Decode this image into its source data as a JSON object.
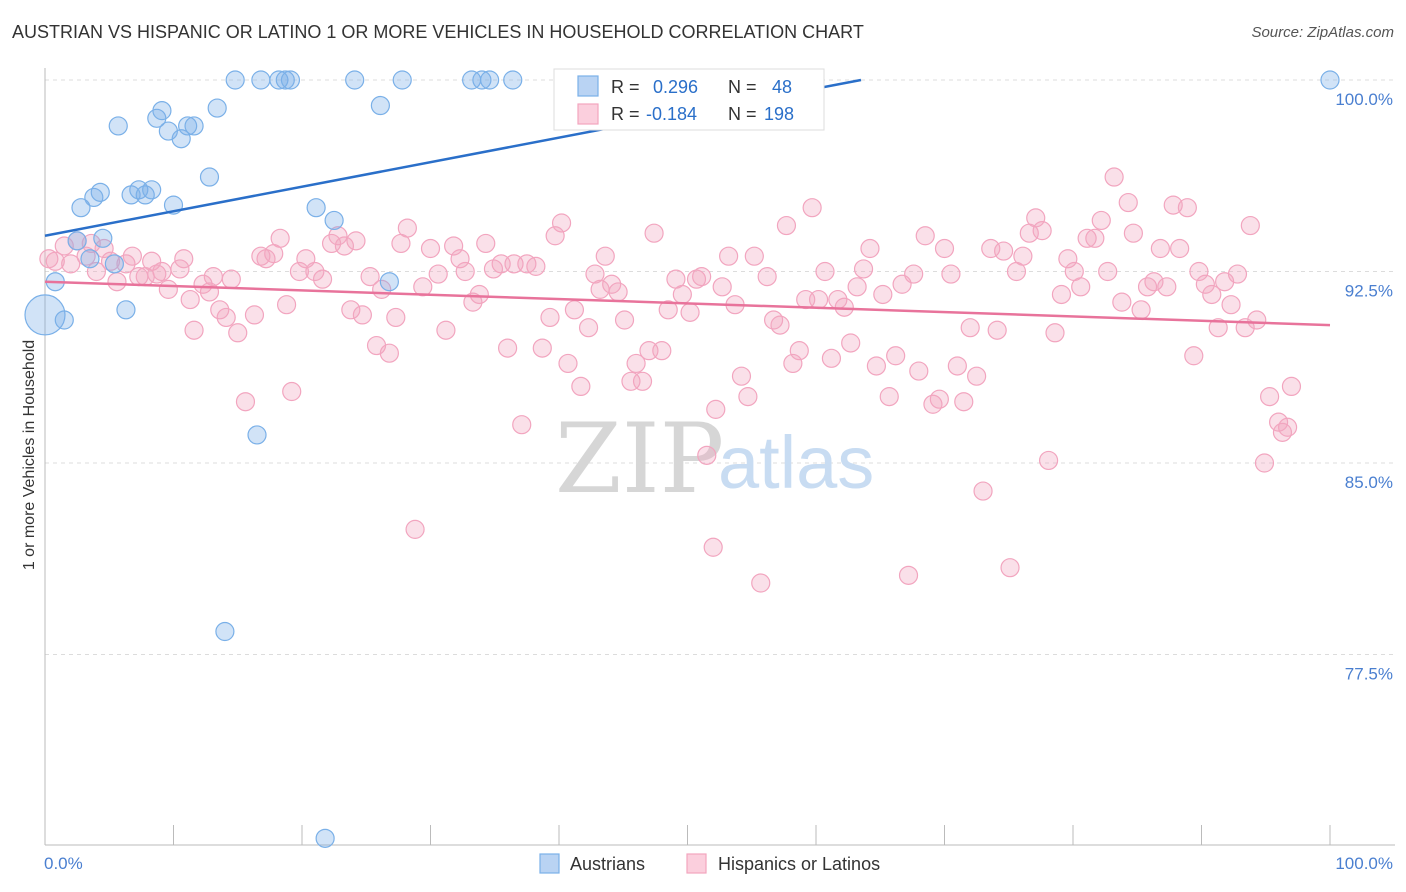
{
  "title": "AUSTRIAN VS HISPANIC OR LATINO 1 OR MORE VEHICLES IN HOUSEHOLD CORRELATION CHART",
  "source": "Source: ZipAtlas.com",
  "watermark": {
    "zip": "ZIP",
    "atlas": "atlas"
  },
  "legend_box": {
    "rows": [
      {
        "r_label": "R =",
        "r_value": "0.296",
        "n_label": "N =",
        "n_value": "48"
      },
      {
        "r_label": "R =",
        "r_value": "-0.184",
        "n_label": "N =",
        "n_value": "198"
      }
    ]
  },
  "bottom_legend": [
    "Austrians",
    "Hispanics or Latinos"
  ],
  "chart_data": {
    "type": "scatter",
    "title": "AUSTRIAN VS HISPANIC OR LATINO 1 OR MORE VEHICLES IN HOUSEHOLD CORRELATION CHART",
    "xlabel": "",
    "ylabel": "1 or more Vehicles in Household",
    "xlim": [
      0,
      100
    ],
    "ylim": [
      70.0,
      101.0
    ],
    "x_tick_labels": [
      "0.0%",
      "100.0%"
    ],
    "y_ticks": [
      77.5,
      85.0,
      92.5,
      100.0
    ],
    "y_tick_labels": [
      "77.5%",
      "85.0%",
      "92.5%",
      "100.0%"
    ],
    "grid": true,
    "legend_position": "top-center",
    "colors": {
      "austrians": "#7ab0e8",
      "hispanics": "#f2a5bf",
      "austrians_line": "#2a6fc9",
      "hispanics_line": "#e8739b",
      "axis_text": "#4a7fd0"
    },
    "series": [
      {
        "name": "Austrians",
        "r": 0.296,
        "n": 48,
        "trend": {
          "x": [
            0,
            63.5
          ],
          "y": [
            93.9,
            100.0
          ]
        },
        "points": [
          [
            0,
            90.8
          ],
          [
            0.8,
            92.1
          ],
          [
            1.5,
            90.6
          ],
          [
            2.5,
            93.7
          ],
          [
            2.8,
            95.0
          ],
          [
            3.5,
            93.0
          ],
          [
            3.8,
            95.4
          ],
          [
            4.3,
            95.6
          ],
          [
            4.5,
            93.8
          ],
          [
            5.4,
            92.8
          ],
          [
            5.7,
            98.2
          ],
          [
            6.3,
            91.0
          ],
          [
            6.7,
            95.5
          ],
          [
            7.3,
            95.7
          ],
          [
            7.8,
            95.5
          ],
          [
            8.3,
            95.7
          ],
          [
            8.7,
            98.5
          ],
          [
            9.1,
            98.8
          ],
          [
            9.6,
            98.0
          ],
          [
            10.0,
            95.1
          ],
          [
            10.6,
            97.7
          ],
          [
            11.1,
            98.2
          ],
          [
            11.6,
            98.2
          ],
          [
            12.8,
            96.2
          ],
          [
            13.4,
            98.9
          ],
          [
            14.0,
            78.4
          ],
          [
            14.8,
            100.0
          ],
          [
            16.5,
            86.1
          ],
          [
            16.8,
            100.0
          ],
          [
            18.2,
            100.0
          ],
          [
            18.7,
            100.0
          ],
          [
            19.1,
            100.0
          ],
          [
            21.1,
            95.0
          ],
          [
            21.8,
            70.3
          ],
          [
            22.5,
            94.5
          ],
          [
            24.1,
            100.0
          ],
          [
            26.1,
            99.0
          ],
          [
            26.8,
            92.1
          ],
          [
            27.8,
            100.0
          ],
          [
            33.2,
            100.0
          ],
          [
            34.0,
            100.0
          ],
          [
            34.6,
            100.0
          ],
          [
            36.4,
            100.0
          ],
          [
            41.2,
            100.0
          ],
          [
            42.0,
            100.0
          ],
          [
            47.5,
            100.0
          ],
          [
            47.6,
            100.0
          ],
          [
            100,
            100.0
          ]
        ]
      },
      {
        "name": "Hispanics or Latinos",
        "r": -0.184,
        "n": 198,
        "trend": {
          "x": [
            0,
            100
          ],
          "y": [
            92.1,
            90.4
          ]
        },
        "points": [
          [
            0.3,
            93.0
          ],
          [
            0.8,
            92.9
          ],
          [
            1.5,
            93.5
          ],
          [
            2.0,
            92.8
          ],
          [
            2.5,
            93.7
          ],
          [
            3.2,
            93.1
          ],
          [
            3.6,
            93.6
          ],
          [
            4.0,
            92.5
          ],
          [
            4.6,
            93.4
          ],
          [
            5.1,
            92.9
          ],
          [
            5.6,
            92.1
          ],
          [
            6.3,
            92.8
          ],
          [
            6.8,
            93.1
          ],
          [
            7.3,
            92.3
          ],
          [
            7.8,
            92.3
          ],
          [
            8.3,
            92.9
          ],
          [
            8.7,
            92.4
          ],
          [
            9.1,
            92.5
          ],
          [
            9.6,
            91.8
          ],
          [
            10.5,
            92.6
          ],
          [
            10.8,
            93.0
          ],
          [
            11.3,
            91.4
          ],
          [
            11.6,
            90.2
          ],
          [
            12.3,
            92.0
          ],
          [
            12.8,
            91.7
          ],
          [
            13.1,
            92.3
          ],
          [
            13.6,
            91.0
          ],
          [
            14.1,
            90.7
          ],
          [
            14.5,
            92.2
          ],
          [
            15.0,
            90.1
          ],
          [
            15.6,
            87.4
          ],
          [
            16.3,
            90.8
          ],
          [
            16.8,
            93.1
          ],
          [
            17.2,
            93.0
          ],
          [
            17.8,
            93.2
          ],
          [
            18.3,
            93.8
          ],
          [
            18.8,
            91.2
          ],
          [
            19.2,
            87.8
          ],
          [
            19.8,
            92.5
          ],
          [
            20.3,
            93.0
          ],
          [
            21.0,
            92.5
          ],
          [
            21.6,
            92.2
          ],
          [
            22.3,
            93.6
          ],
          [
            22.8,
            93.9
          ],
          [
            23.3,
            93.5
          ],
          [
            23.8,
            91.0
          ],
          [
            24.2,
            93.7
          ],
          [
            24.7,
            90.8
          ],
          [
            25.3,
            92.3
          ],
          [
            25.8,
            89.6
          ],
          [
            26.2,
            91.8
          ],
          [
            26.8,
            89.3
          ],
          [
            27.3,
            90.7
          ],
          [
            27.7,
            93.6
          ],
          [
            28.2,
            94.2
          ],
          [
            28.8,
            82.4
          ],
          [
            29.4,
            91.9
          ],
          [
            30.0,
            93.4
          ],
          [
            30.6,
            92.4
          ],
          [
            31.2,
            90.2
          ],
          [
            31.8,
            93.5
          ],
          [
            32.3,
            93.0
          ],
          [
            32.7,
            92.5
          ],
          [
            33.3,
            91.3
          ],
          [
            33.8,
            91.6
          ],
          [
            34.3,
            93.6
          ],
          [
            34.9,
            92.6
          ],
          [
            35.5,
            92.8
          ],
          [
            36.0,
            89.5
          ],
          [
            36.5,
            92.8
          ],
          [
            37.1,
            86.5
          ],
          [
            37.5,
            92.8
          ],
          [
            38.2,
            92.7
          ],
          [
            38.7,
            89.5
          ],
          [
            39.3,
            90.7
          ],
          [
            39.7,
            93.9
          ],
          [
            40.2,
            94.4
          ],
          [
            40.7,
            88.9
          ],
          [
            41.2,
            91.0
          ],
          [
            41.7,
            88.0
          ],
          [
            42.3,
            90.3
          ],
          [
            42.8,
            92.4
          ],
          [
            43.2,
            91.8
          ],
          [
            43.6,
            93.1
          ],
          [
            44.1,
            92.0
          ],
          [
            44.6,
            91.7
          ],
          [
            45.1,
            90.6
          ],
          [
            45.6,
            88.2
          ],
          [
            46.0,
            88.9
          ],
          [
            46.5,
            88.2
          ],
          [
            47.0,
            89.4
          ],
          [
            47.4,
            94.0
          ],
          [
            48.0,
            89.4
          ],
          [
            48.5,
            91.0
          ],
          [
            49.1,
            92.2
          ],
          [
            49.6,
            91.6
          ],
          [
            50.2,
            90.9
          ],
          [
            50.7,
            92.2
          ],
          [
            51.1,
            92.3
          ],
          [
            51.5,
            85.3
          ],
          [
            52.0,
            81.7
          ],
          [
            52.2,
            87.1
          ],
          [
            52.7,
            91.9
          ],
          [
            53.2,
            93.1
          ],
          [
            53.7,
            91.2
          ],
          [
            54.2,
            88.4
          ],
          [
            54.7,
            87.6
          ],
          [
            55.2,
            93.1
          ],
          [
            55.7,
            80.3
          ],
          [
            56.2,
            92.3
          ],
          [
            56.7,
            90.6
          ],
          [
            57.2,
            90.4
          ],
          [
            57.7,
            94.3
          ],
          [
            58.2,
            88.9
          ],
          [
            58.7,
            89.4
          ],
          [
            59.2,
            91.4
          ],
          [
            59.7,
            95.0
          ],
          [
            60.2,
            91.4
          ],
          [
            60.7,
            92.5
          ],
          [
            61.2,
            89.1
          ],
          [
            61.7,
            91.4
          ],
          [
            62.2,
            91.1
          ],
          [
            62.7,
            89.7
          ],
          [
            63.2,
            91.9
          ],
          [
            63.7,
            92.6
          ],
          [
            64.2,
            93.4
          ],
          [
            64.7,
            88.8
          ],
          [
            65.2,
            91.6
          ],
          [
            65.7,
            87.6
          ],
          [
            66.2,
            89.2
          ],
          [
            66.7,
            92.0
          ],
          [
            67.2,
            80.6
          ],
          [
            67.6,
            92.4
          ],
          [
            68.0,
            88.6
          ],
          [
            68.5,
            93.9
          ],
          [
            69.1,
            87.3
          ],
          [
            69.6,
            87.5
          ],
          [
            70.0,
            93.4
          ],
          [
            70.5,
            92.4
          ],
          [
            71.0,
            88.8
          ],
          [
            71.5,
            87.4
          ],
          [
            72.0,
            90.3
          ],
          [
            72.5,
            88.4
          ],
          [
            73.0,
            83.9
          ],
          [
            73.6,
            93.4
          ],
          [
            74.1,
            90.2
          ],
          [
            74.6,
            93.3
          ],
          [
            75.1,
            80.9
          ],
          [
            75.6,
            92.5
          ],
          [
            76.1,
            93.1
          ],
          [
            76.6,
            94.0
          ],
          [
            77.1,
            94.6
          ],
          [
            77.6,
            94.1
          ],
          [
            78.1,
            85.1
          ],
          [
            78.6,
            90.1
          ],
          [
            79.1,
            91.6
          ],
          [
            79.6,
            93.0
          ],
          [
            80.1,
            92.5
          ],
          [
            80.6,
            91.9
          ],
          [
            81.1,
            93.8
          ],
          [
            81.7,
            93.8
          ],
          [
            82.2,
            94.5
          ],
          [
            82.7,
            92.5
          ],
          [
            83.2,
            96.2
          ],
          [
            83.8,
            91.3
          ],
          [
            84.3,
            95.2
          ],
          [
            84.7,
            94.0
          ],
          [
            85.3,
            91.0
          ],
          [
            85.8,
            91.9
          ],
          [
            86.3,
            92.1
          ],
          [
            86.8,
            93.4
          ],
          [
            87.3,
            91.9
          ],
          [
            87.8,
            95.1
          ],
          [
            88.3,
            93.4
          ],
          [
            88.9,
            95.0
          ],
          [
            89.4,
            89.2
          ],
          [
            89.8,
            92.5
          ],
          [
            90.3,
            92.0
          ],
          [
            90.8,
            91.6
          ],
          [
            91.3,
            90.3
          ],
          [
            91.8,
            92.1
          ],
          [
            92.3,
            91.2
          ],
          [
            92.8,
            92.4
          ],
          [
            93.4,
            90.3
          ],
          [
            93.8,
            94.3
          ],
          [
            94.3,
            90.6
          ],
          [
            94.9,
            85.0
          ],
          [
            95.3,
            87.6
          ],
          [
            96.0,
            86.6
          ],
          [
            96.3,
            86.2
          ],
          [
            96.7,
            86.4
          ],
          [
            97.0,
            88.0
          ]
        ]
      }
    ]
  }
}
